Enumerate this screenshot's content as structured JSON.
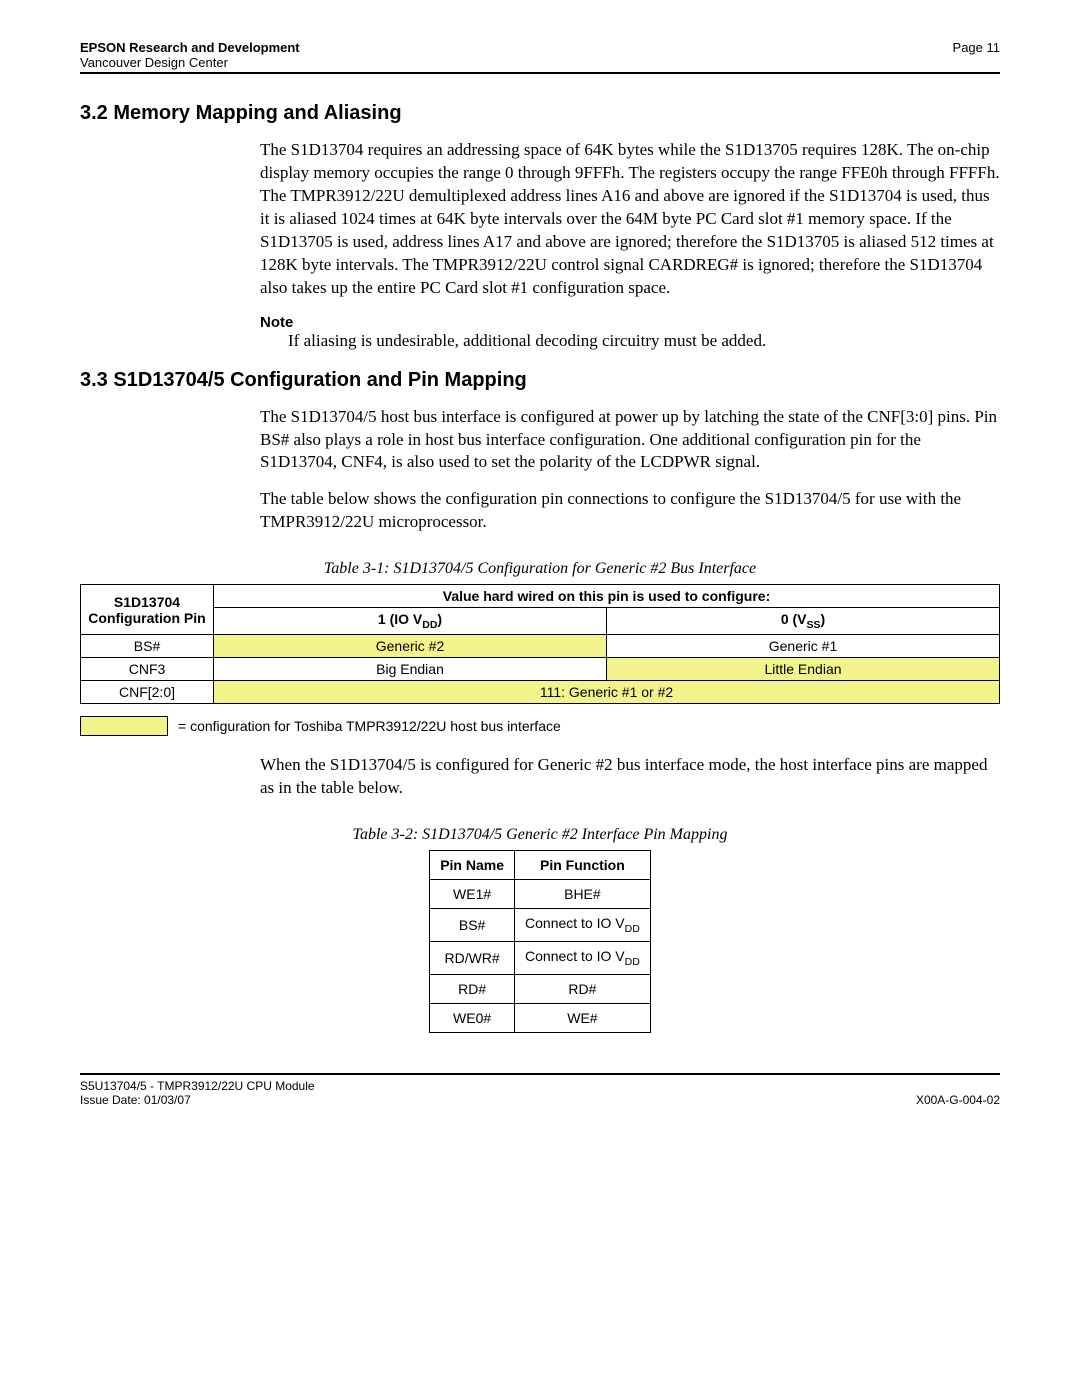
{
  "header": {
    "org": "EPSON Research and Development",
    "center": "Vancouver Design Center",
    "page": "Page 11"
  },
  "sec32": {
    "title": "3.2  Memory Mapping and Aliasing",
    "para": "The S1D13704 requires an addressing space of 64K bytes while the S1D13705 requires 128K. The on-chip display memory occupies the range 0 through 9FFFh. The registers occupy the range FFE0h through FFFFh. The TMPR3912/22U demultiplexed address lines A16 and above are ignored if the S1D13704 is used, thus it is aliased 1024 times at 64K byte intervals over the 64M byte PC Card slot #1 memory space. If the S1D13705 is used, address lines A17 and above are ignored; therefore the S1D13705 is aliased 512 times at 128K byte intervals. The TMPR3912/22U control signal CARDREG# is ignored; therefore the S1D13704 also takes up the entire PC Card slot #1 configuration space.",
    "note_label": "Note",
    "note": "If aliasing is undesirable, additional decoding circuitry must be added."
  },
  "sec33": {
    "title": "3.3  S1D13704/5 Configuration and Pin Mapping",
    "para1": "The S1D13704/5 host bus interface is configured at power up by latching the state of the CNF[3:0] pins. Pin BS# also plays a role in host bus interface configuration. One additional configuration pin for the S1D13704, CNF4, is also used to set the polarity of the LCDPWR signal.",
    "para2": "The table below shows the configuration pin connections to configure the S1D13704/5 for use with the TMPR3912/22U microprocessor."
  },
  "table1": {
    "caption": "Table 3-1: S1D13704/5 Configuration for Generic #2 Bus Interface",
    "head_pin": "S1D13704 Configuration Pin",
    "head_value": "Value hard wired on this pin is used to configure:",
    "head_1_pre": "1 (IO V",
    "head_1_sub": "DD",
    "head_1_post": ")",
    "head_0_pre": "0 (V",
    "head_0_sub": "SS",
    "head_0_post": ")",
    "rows": [
      {
        "pin": "BS#",
        "v1": "Generic #2",
        "v0": "Generic #1",
        "hl1": true,
        "hl0": false
      },
      {
        "pin": "CNF3",
        "v1": "Big Endian",
        "v0": "Little Endian",
        "hl1": false,
        "hl0": true
      }
    ],
    "row3_pin": "CNF[2:0]",
    "row3_val": "111: Generic #1 or #2",
    "legend": "= configuration for Toshiba TMPR3912/22U host bus interface"
  },
  "para_after_t1": "When the S1D13704/5 is configured for Generic #2 bus interface mode, the host interface pins are mapped as in the table below.",
  "table2": {
    "caption": "Table 3-2: S1D13704/5 Generic #2 Interface Pin Mapping",
    "col1": "Pin Name",
    "col2": "Pin Function",
    "rows": [
      {
        "name": "WE1#",
        "func": "BHE#",
        "sub": ""
      },
      {
        "name": "BS#",
        "func": "Connect to IO V",
        "sub": "DD"
      },
      {
        "name": "RD/WR#",
        "func": "Connect to IO V",
        "sub": "DD"
      },
      {
        "name": "RD#",
        "func": "RD#",
        "sub": ""
      },
      {
        "name": "WE0#",
        "func": "WE#",
        "sub": ""
      }
    ]
  },
  "footer": {
    "module": "S5U13704/5 - TMPR3912/22U CPU Module",
    "issue": "Issue Date: 01/03/07",
    "docnum": "X00A-G-004-02"
  },
  "style": {
    "highlight_color": "#f3f38b",
    "rule_color": "#000000",
    "body_font": "Times New Roman",
    "sans_font": "Arial"
  }
}
